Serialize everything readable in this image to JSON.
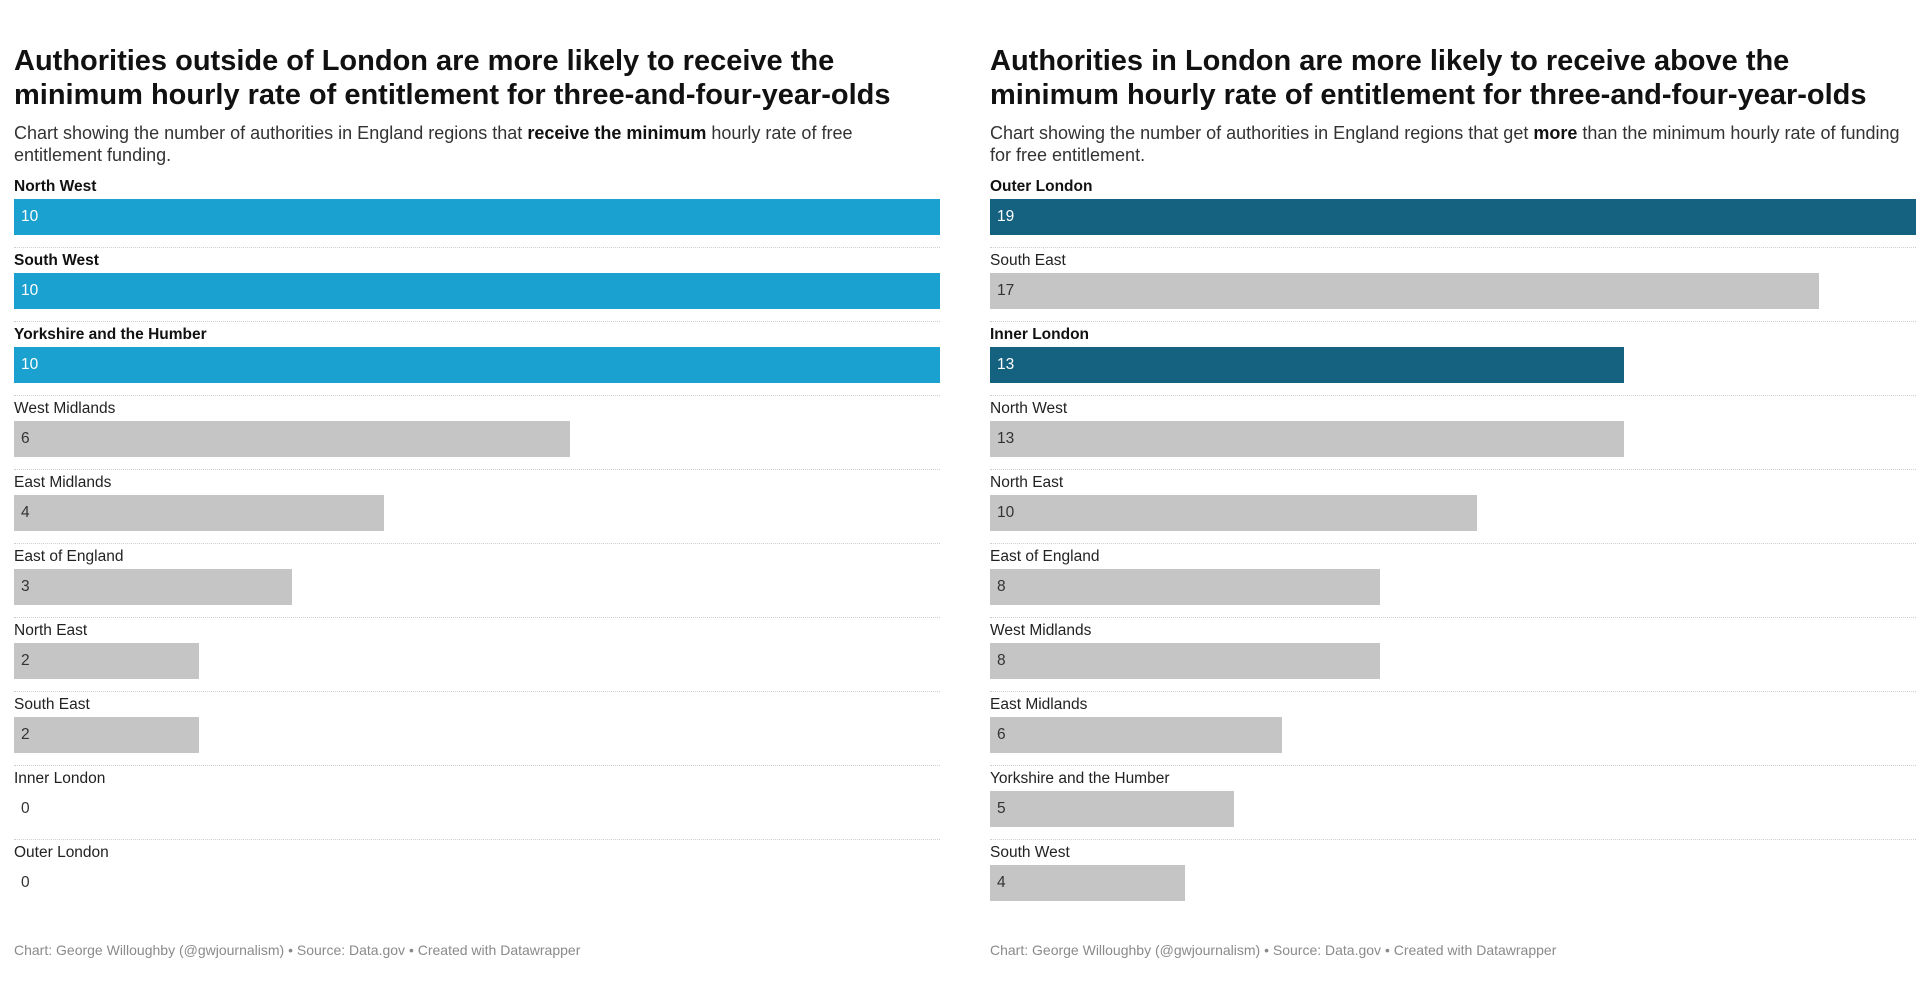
{
  "footer_text": "Chart: George Willoughby (@gwjournalism) • Source: Data.gov • Created with Datawrapper",
  "colors": {
    "highlight_left": "#1aa1d0",
    "highlight_right": "#156180",
    "other": "#c5c5c5"
  },
  "chart_data": [
    {
      "type": "bar",
      "orientation": "horizontal",
      "title": "Authorities outside of London are more likely to receive the minimum hourly rate of entitlement for three-and-four-year-olds",
      "subtitle_parts": [
        "Chart showing the number of authorities in England regions that ",
        "receive the minimum",
        " hourly rate of free entitlement funding."
      ],
      "categories": [
        "North West",
        "South West",
        "Yorkshire and the Humber",
        "West Midlands",
        "East Midlands",
        "East of England",
        "North East",
        "South East",
        "Inner London",
        "Outer London"
      ],
      "values": [
        10,
        10,
        10,
        6,
        4,
        3,
        2,
        2,
        0,
        0
      ],
      "highlighted": [
        "North West",
        "South West",
        "Yorkshire and the Humber"
      ],
      "xlim": [
        0,
        10
      ]
    },
    {
      "type": "bar",
      "orientation": "horizontal",
      "title": "Authorities in London are more likely to receive above the minimum hourly rate of entitlement for three-and-four-year-olds",
      "subtitle_parts": [
        "Chart showing the number of authorities in England regions that get ",
        "more",
        " than the minimum hourly rate of funding for free entitlement."
      ],
      "categories": [
        "Outer London",
        "South East",
        "Inner London",
        "North West",
        "North East",
        "East of England",
        "West Midlands",
        "East Midlands",
        "Yorkshire and the Humber",
        "South West"
      ],
      "values": [
        19,
        17,
        13,
        13,
        10,
        8,
        8,
        6,
        5,
        4
      ],
      "highlighted": [
        "Outer London",
        "Inner London"
      ],
      "xlim": [
        0,
        19
      ]
    }
  ]
}
